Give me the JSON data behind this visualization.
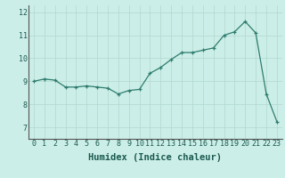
{
  "x": [
    0,
    1,
    2,
    3,
    4,
    5,
    6,
    7,
    8,
    9,
    10,
    11,
    12,
    13,
    14,
    15,
    16,
    17,
    18,
    19,
    20,
    21,
    22,
    23
  ],
  "y": [
    9.0,
    9.1,
    9.05,
    8.75,
    8.75,
    8.8,
    8.75,
    8.7,
    8.45,
    8.6,
    8.65,
    9.35,
    9.6,
    9.95,
    10.25,
    10.25,
    10.35,
    10.45,
    11.0,
    11.15,
    11.6,
    11.1,
    8.45,
    7.25
  ],
  "line_color": "#2e7d6e",
  "marker": "+",
  "marker_color": "#2e7d6e",
  "bg_color": "#cceee8",
  "grid_color": "#b0d8ce",
  "xlabel": "Humidex (Indice chaleur)",
  "xlabel_fontsize": 7.5,
  "tick_fontsize": 6,
  "ylim": [
    6.5,
    12.3
  ],
  "xlim": [
    -0.5,
    23.5
  ],
  "yticks": [
    7,
    8,
    9,
    10,
    11,
    12
  ],
  "xticks": [
    0,
    1,
    2,
    3,
    4,
    5,
    6,
    7,
    8,
    9,
    10,
    11,
    12,
    13,
    14,
    15,
    16,
    17,
    18,
    19,
    20,
    21,
    22,
    23
  ]
}
